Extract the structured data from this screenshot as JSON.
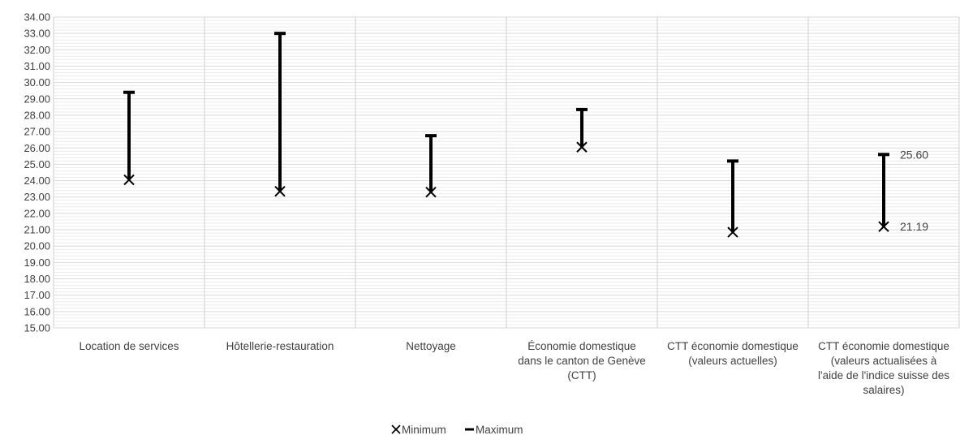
{
  "chart_data": {
    "type": "range",
    "title": "",
    "xlabel": "",
    "ylabel": "",
    "ylim": [
      15,
      34
    ],
    "ytick_step": 1,
    "ytick_labels": [
      "15.00",
      "16.00",
      "17.00",
      "18.00",
      "19.00",
      "20.00",
      "21.00",
      "22.00",
      "23.00",
      "24.00",
      "25.00",
      "26.00",
      "27.00",
      "28.00",
      "29.00",
      "30.00",
      "31.00",
      "32.00",
      "33.00",
      "34.00"
    ],
    "grid": true,
    "legend_position": "bottom",
    "categories": [
      [
        "Location de services"
      ],
      [
        "Hôtellerie-restauration"
      ],
      [
        "Nettoyage"
      ],
      [
        "Économie domestique",
        "dans le canton de Genève",
        "(CTT)"
      ],
      [
        "CTT économie domestique",
        "(valeurs actuelles)"
      ],
      [
        "CTT économie domestique",
        "(valeurs actualisées à",
        "l'aide de l'indice suisse des",
        "salaires)"
      ]
    ],
    "series": [
      {
        "name": "Minimum",
        "marker": "x",
        "values": [
          24.05,
          23.35,
          23.3,
          26.05,
          20.85,
          21.19
        ]
      },
      {
        "name": "Maximum",
        "marker": "dash",
        "values": [
          29.4,
          33.0,
          26.75,
          28.35,
          25.2,
          25.6
        ]
      }
    ],
    "data_labels": [
      {
        "series": "Maximum",
        "index": 5,
        "text": "25.60"
      },
      {
        "series": "Minimum",
        "index": 5,
        "text": "21.19"
      }
    ],
    "colors": {
      "marker": "#000000",
      "grid": "#d9d9d9",
      "text": "#404040"
    }
  }
}
